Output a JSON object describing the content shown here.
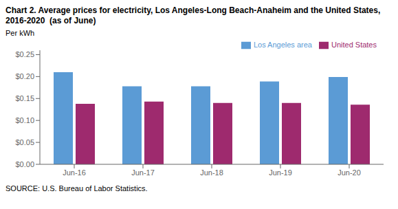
{
  "chart_data": {
    "type": "bar",
    "title": "Chart 2. Average prices for electricity, Los Angeles-Long Beach-Anaheim and the United States, 2016-2020  (as of June)",
    "ylabel": "Per kWh",
    "annotations": [
      "SOURCE: U.S. Bureau of Labor Statistics."
    ],
    "categories": [
      "Jun-16",
      "Jun-17",
      "Jun-18",
      "Jun-19",
      "Jun-20"
    ],
    "series": [
      {
        "name": "Los Angeles area",
        "color": "#5B9BD5",
        "values": [
          0.21,
          0.178,
          0.178,
          0.189,
          0.199
        ]
      },
      {
        "name": "United States",
        "color": "#9E2A6E",
        "values": [
          0.138,
          0.143,
          0.14,
          0.14,
          0.136
        ]
      }
    ],
    "ylim": [
      0.0,
      0.26
    ],
    "yticks": [
      {
        "value": 0.0,
        "label": "$0.00"
      },
      {
        "value": 0.05,
        "label": "$0.05"
      },
      {
        "value": 0.1,
        "label": "$0.10"
      },
      {
        "value": 0.15,
        "label": "$0.15"
      },
      {
        "value": 0.2,
        "label": "$0.20"
      },
      {
        "value": 0.25,
        "label": "$0.25"
      }
    ],
    "grid": false,
    "legend": "top-right"
  }
}
